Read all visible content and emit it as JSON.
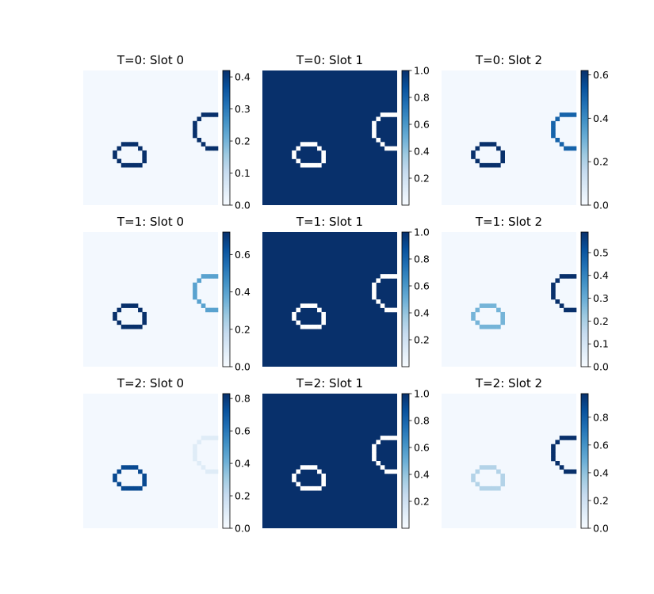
{
  "chart_data": {
    "type": "heatmap",
    "colormap": "Blues",
    "background_level": 0.02,
    "panels": [
      {
        "title": "T=0: Slot 0",
        "colorbar": {
          "vmin": 0,
          "vmax": 0.42,
          "ticks": [
            "0.0",
            "0.1",
            "0.2",
            "0.3",
            "0.4"
          ],
          "tick_values": [
            0,
            0.1,
            0.2,
            0.3,
            0.4
          ]
        },
        "fill": 0.0,
        "circle_value": 0.42,
        "arc_value": 0.42
      },
      {
        "title": "T=0: Slot 1",
        "colorbar": {
          "vmin": 0.0,
          "vmax": 1.0,
          "ticks": [
            "0.2",
            "0.4",
            "0.6",
            "0.8",
            "1.0"
          ],
          "tick_values": [
            0.2,
            0.4,
            0.6,
            0.8,
            1.0
          ]
        },
        "fill": 1.0,
        "circle_value": 0.0,
        "arc_value": 0.0
      },
      {
        "title": "T=0: Slot 2",
        "colorbar": {
          "vmin": 0,
          "vmax": 0.62,
          "ticks": [
            "0.0",
            "0.2",
            "0.4",
            "0.6"
          ],
          "tick_values": [
            0,
            0.2,
            0.4,
            0.6
          ]
        },
        "fill": 0.0,
        "circle_value": 0.62,
        "arc_value": 0.5
      },
      {
        "title": "T=1: Slot 0",
        "colorbar": {
          "vmin": 0,
          "vmax": 0.72,
          "ticks": [
            "0.0",
            "0.2",
            "0.4",
            "0.6"
          ],
          "tick_values": [
            0,
            0.2,
            0.4,
            0.6
          ]
        },
        "fill": 0.0,
        "circle_value": 0.72,
        "arc_value": 0.4
      },
      {
        "title": "T=1: Slot 1",
        "colorbar": {
          "vmin": 0.0,
          "vmax": 1.0,
          "ticks": [
            "0.2",
            "0.4",
            "0.6",
            "0.8",
            "1.0"
          ],
          "tick_values": [
            0.2,
            0.4,
            0.6,
            0.8,
            1.0
          ]
        },
        "fill": 1.0,
        "circle_value": 0.0,
        "arc_value": 0.0
      },
      {
        "title": "T=1: Slot 2",
        "colorbar": {
          "vmin": 0,
          "vmax": 0.59,
          "ticks": [
            "0.0",
            "0.1",
            "0.2",
            "0.3",
            "0.4",
            "0.5"
          ],
          "tick_values": [
            0,
            0.1,
            0.2,
            0.3,
            0.4,
            0.5
          ]
        },
        "fill": 0.0,
        "circle_value": 0.28,
        "arc_value": 0.59
      },
      {
        "title": "T=2: Slot 0",
        "colorbar": {
          "vmin": 0,
          "vmax": 0.83,
          "ticks": [
            "0.0",
            "0.2",
            "0.4",
            "0.6",
            "0.8"
          ],
          "tick_values": [
            0,
            0.2,
            0.4,
            0.6,
            0.8
          ]
        },
        "fill": 0.0,
        "circle_value": 0.75,
        "arc_value": 0.1
      },
      {
        "title": "T=2: Slot 1",
        "colorbar": {
          "vmin": 0.0,
          "vmax": 1.0,
          "ticks": [
            "0.2",
            "0.4",
            "0.6",
            "0.8",
            "1.0"
          ],
          "tick_values": [
            0.2,
            0.4,
            0.6,
            0.8,
            1.0
          ]
        },
        "fill": 1.0,
        "circle_value": 0.0,
        "arc_value": 0.0
      },
      {
        "title": "T=2: Slot 2",
        "colorbar": {
          "vmin": 0,
          "vmax": 0.97,
          "ticks": [
            "0.0",
            "0.2",
            "0.4",
            "0.6",
            "0.8"
          ],
          "tick_values": [
            0,
            0.2,
            0.4,
            0.6,
            0.8
          ]
        },
        "fill": 0.0,
        "circle_value": 0.3,
        "arc_value": 0.97
      }
    ]
  }
}
